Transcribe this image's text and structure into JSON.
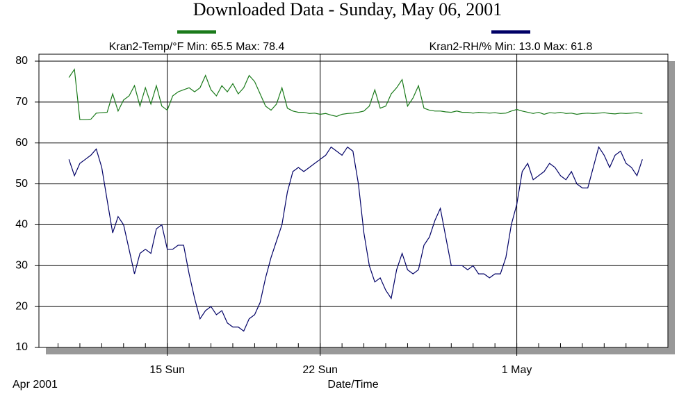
{
  "chart_data": {
    "type": "line",
    "title": "Downloaded Data - Sunday, May 06, 2001",
    "xlabel": "Date/Time",
    "corner_label": "Apr 2001",
    "xlim": [
      "2001-04-09T03:00",
      "2001-05-07T22:00"
    ],
    "xticks": [
      {
        "value": "2001-04-15T00:00",
        "label": "15 Sun"
      },
      {
        "value": "2001-04-22T00:00",
        "label": "22 Sun"
      },
      {
        "value": "2001-05-01T00:00",
        "label": "1 May"
      }
    ],
    "xminorticks": [
      "2001-04-10T00:00",
      "2001-04-11T00:00",
      "2001-04-12T00:00",
      "2001-04-13T00:00",
      "2001-04-14T00:00",
      "2001-04-15T00:00",
      "2001-04-16T00:00",
      "2001-04-17T00:00",
      "2001-04-18T00:00",
      "2001-04-19T00:00",
      "2001-04-20T00:00",
      "2001-04-21T00:00",
      "2001-04-22T00:00",
      "2001-04-23T00:00",
      "2001-04-24T00:00",
      "2001-04-25T00:00",
      "2001-04-26T00:00",
      "2001-04-27T00:00",
      "2001-04-28T00:00",
      "2001-04-29T00:00",
      "2001-04-30T00:00",
      "2001-05-01T00:00",
      "2001-05-02T00:00",
      "2001-05-03T00:00",
      "2001-05-04T00:00",
      "2001-05-05T00:00",
      "2001-05-06T00:00",
      "2001-05-07T00:00"
    ],
    "ylim": [
      10,
      81.7
    ],
    "yticks": [
      10,
      20,
      30,
      40,
      50,
      60,
      70,
      80
    ],
    "grid": true,
    "x": [
      "2001-04-10T12:00",
      "2001-04-10T18:00",
      "2001-04-11T00:00",
      "2001-04-11T06:00",
      "2001-04-11T12:00",
      "2001-04-11T18:00",
      "2001-04-12T00:00",
      "2001-04-12T06:00",
      "2001-04-12T12:00",
      "2001-04-12T18:00",
      "2001-04-13T00:00",
      "2001-04-13T06:00",
      "2001-04-13T12:00",
      "2001-04-13T18:00",
      "2001-04-14T00:00",
      "2001-04-14T06:00",
      "2001-04-14T12:00",
      "2001-04-14T18:00",
      "2001-04-15T00:00",
      "2001-04-15T06:00",
      "2001-04-15T12:00",
      "2001-04-15T18:00",
      "2001-04-16T00:00",
      "2001-04-16T06:00",
      "2001-04-16T12:00",
      "2001-04-16T18:00",
      "2001-04-17T00:00",
      "2001-04-17T06:00",
      "2001-04-17T12:00",
      "2001-04-17T18:00",
      "2001-04-18T00:00",
      "2001-04-18T06:00",
      "2001-04-18T12:00",
      "2001-04-18T18:00",
      "2001-04-19T00:00",
      "2001-04-19T06:00",
      "2001-04-19T12:00",
      "2001-04-19T18:00",
      "2001-04-20T00:00",
      "2001-04-20T06:00",
      "2001-04-20T12:00",
      "2001-04-20T18:00",
      "2001-04-21T00:00",
      "2001-04-21T06:00",
      "2001-04-21T12:00",
      "2001-04-21T18:00",
      "2001-04-22T00:00",
      "2001-04-22T06:00",
      "2001-04-22T12:00",
      "2001-04-22T18:00",
      "2001-04-23T00:00",
      "2001-04-23T06:00",
      "2001-04-23T12:00",
      "2001-04-23T18:00",
      "2001-04-24T00:00",
      "2001-04-24T06:00",
      "2001-04-24T12:00",
      "2001-04-24T18:00",
      "2001-04-25T00:00",
      "2001-04-25T06:00",
      "2001-04-25T12:00",
      "2001-04-25T18:00",
      "2001-04-26T00:00",
      "2001-04-26T06:00",
      "2001-04-26T12:00",
      "2001-04-26T18:00",
      "2001-04-27T00:00",
      "2001-04-27T06:00",
      "2001-04-27T12:00",
      "2001-04-27T18:00",
      "2001-04-28T00:00",
      "2001-04-28T06:00",
      "2001-04-28T12:00",
      "2001-04-28T18:00",
      "2001-04-29T00:00",
      "2001-04-29T06:00",
      "2001-04-29T12:00",
      "2001-04-29T18:00",
      "2001-04-30T00:00",
      "2001-04-30T06:00",
      "2001-04-30T12:00",
      "2001-04-30T18:00",
      "2001-05-01T00:00",
      "2001-05-01T06:00",
      "2001-05-01T12:00",
      "2001-05-01T18:00",
      "2001-05-02T00:00",
      "2001-05-02T06:00",
      "2001-05-02T12:00",
      "2001-05-02T18:00",
      "2001-05-03T00:00",
      "2001-05-03T06:00",
      "2001-05-03T12:00",
      "2001-05-03T18:00",
      "2001-05-04T00:00",
      "2001-05-04T06:00",
      "2001-05-04T12:00",
      "2001-05-04T18:00",
      "2001-05-05T00:00",
      "2001-05-05T06:00",
      "2001-05-05T12:00",
      "2001-05-05T18:00",
      "2001-05-06T00:00",
      "2001-05-06T06:00",
      "2001-05-06T12:00",
      "2001-05-06T18:00"
    ],
    "series": [
      {
        "name": "Kran2-Temp/°F Min: 65.5 Max: 78.4",
        "color": "#1a7a1a",
        "values": [
          76,
          78,
          65.7,
          65.7,
          65.8,
          67.3,
          67.4,
          67.5,
          72,
          67.8,
          70.5,
          71.5,
          74,
          69,
          73.5,
          69.5,
          74,
          69,
          68,
          71.5,
          72.5,
          73,
          73.5,
          72.5,
          73.5,
          76.5,
          73,
          71.5,
          74,
          72.5,
          74.5,
          72,
          73.5,
          76.5,
          75,
          72,
          69,
          68,
          69.5,
          73.5,
          68.5,
          67.8,
          67.5,
          67.5,
          67.2,
          67.3,
          67,
          67.2,
          66.8,
          66.5,
          67,
          67.2,
          67.3,
          67.5,
          67.8,
          69,
          73,
          68.5,
          69,
          72,
          73.5,
          75.5,
          69,
          71,
          74,
          68.5,
          68,
          67.8,
          67.8,
          67.6,
          67.5,
          67.8,
          67.5,
          67.5,
          67.3,
          67.5,
          67.4,
          67.3,
          67.4,
          67.2,
          67.3,
          67.8,
          68.2,
          67.8,
          67.5,
          67.2,
          67.5,
          67,
          67.4,
          67.3,
          67.5,
          67.2,
          67.3,
          67,
          67.2,
          67.3,
          67.2,
          67.3,
          67.4,
          67.2,
          67.1,
          67.3,
          67.2,
          67.3,
          67.4,
          67.2
        ]
      },
      {
        "name": "Kran2-RH/% Min: 13.0 Max: 61.8",
        "color": "#000066",
        "values": [
          56,
          52,
          55,
          56,
          57,
          58.5,
          54,
          46,
          38,
          42,
          40,
          34,
          28,
          33,
          34,
          33,
          39,
          40,
          34,
          34,
          35,
          35,
          28,
          22,
          17,
          19,
          20,
          18,
          19,
          16,
          15,
          15,
          14,
          17,
          18,
          21,
          27,
          32,
          36,
          40,
          48,
          53,
          54,
          53,
          54,
          55,
          56,
          57,
          59,
          58,
          57,
          59,
          58,
          50,
          38,
          30,
          26,
          27,
          24,
          22,
          29,
          33,
          29,
          28,
          29,
          35,
          37,
          41,
          44,
          37,
          30,
          30,
          30,
          29,
          30,
          28,
          28,
          27,
          28,
          28,
          32,
          40,
          45,
          53,
          55,
          51,
          52,
          53,
          55,
          54,
          52,
          51,
          53,
          50,
          49,
          49,
          54,
          59,
          57,
          54,
          57,
          58,
          55,
          54,
          52,
          56
        ]
      }
    ]
  }
}
